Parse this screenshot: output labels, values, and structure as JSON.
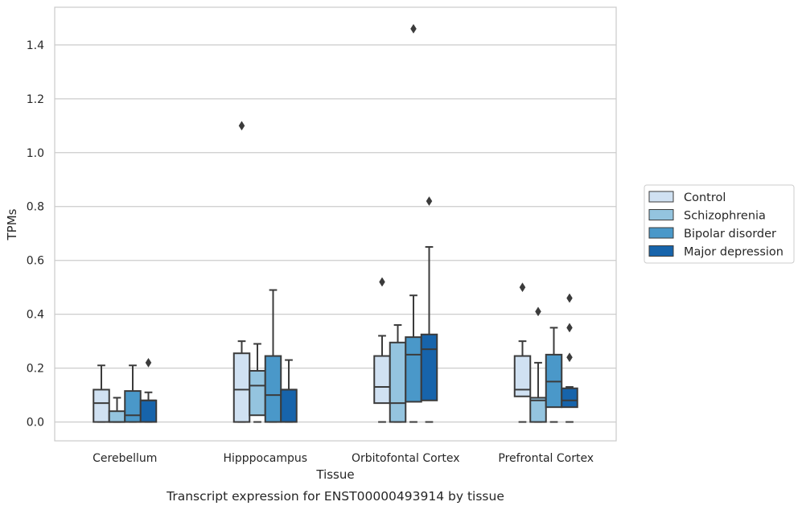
{
  "chart_data": {
    "type": "box",
    "xlabel": "Tissue",
    "ylabel": "TPMs",
    "caption": "Transcript expression for ENST00000493914 by tissue",
    "ylim": [
      -0.07,
      1.54
    ],
    "yticks": [
      0.0,
      0.2,
      0.4,
      0.6,
      0.8,
      1.0,
      1.2,
      1.4
    ],
    "ytick_labels": [
      "0.0",
      "0.2",
      "0.4",
      "0.6",
      "0.8",
      "1.0",
      "1.2",
      "1.4"
    ],
    "grid": "horizontal",
    "legend_position": "right",
    "categories": [
      "Cerebellum",
      "Hipppocampus",
      "Orbitofontal Cortex",
      "Prefrontal Cortex"
    ],
    "series": [
      {
        "name": "Control",
        "color": "#d0e1f2",
        "boxes": [
          {
            "whisker_low": 0.0,
            "q1": 0.0,
            "median": 0.07,
            "q3": 0.12,
            "whisker_high": 0.21,
            "outliers": []
          },
          {
            "whisker_low": 0.0,
            "q1": 0.0,
            "median": 0.12,
            "q3": 0.255,
            "whisker_high": 0.3,
            "outliers": [
              1.1
            ]
          },
          {
            "whisker_low": 0.0,
            "q1": 0.07,
            "median": 0.13,
            "q3": 0.245,
            "whisker_high": 0.32,
            "outliers": [
              0.52
            ]
          },
          {
            "whisker_low": 0.0,
            "q1": 0.095,
            "median": 0.12,
            "q3": 0.245,
            "whisker_high": 0.3,
            "outliers": [
              0.5
            ]
          }
        ]
      },
      {
        "name": "Schizophrenia",
        "color": "#94c4df",
        "boxes": [
          {
            "whisker_low": 0.0,
            "q1": 0.0,
            "median": 0.0,
            "q3": 0.04,
            "whisker_high": 0.09,
            "outliers": []
          },
          {
            "whisker_low": 0.0,
            "q1": 0.025,
            "median": 0.135,
            "q3": 0.19,
            "whisker_high": 0.29,
            "outliers": []
          },
          {
            "whisker_low": 0.0,
            "q1": 0.0,
            "median": 0.07,
            "q3": 0.295,
            "whisker_high": 0.36,
            "outliers": []
          },
          {
            "whisker_low": 0.0,
            "q1": 0.0,
            "median": 0.08,
            "q3": 0.09,
            "whisker_high": 0.22,
            "outliers": [
              0.41
            ]
          }
        ]
      },
      {
        "name": "Bipolar disorder",
        "color": "#4a98c9",
        "boxes": [
          {
            "whisker_low": 0.0,
            "q1": 0.0,
            "median": 0.025,
            "q3": 0.115,
            "whisker_high": 0.21,
            "outliers": []
          },
          {
            "whisker_low": 0.0,
            "q1": 0.0,
            "median": 0.1,
            "q3": 0.245,
            "whisker_high": 0.49,
            "outliers": []
          },
          {
            "whisker_low": 0.0,
            "q1": 0.075,
            "median": 0.25,
            "q3": 0.315,
            "whisker_high": 0.47,
            "outliers": [
              1.46
            ]
          },
          {
            "whisker_low": 0.0,
            "q1": 0.055,
            "median": 0.15,
            "q3": 0.25,
            "whisker_high": 0.35,
            "outliers": []
          }
        ]
      },
      {
        "name": "Major depression",
        "color": "#1764ab",
        "boxes": [
          {
            "whisker_low": 0.0,
            "q1": 0.0,
            "median": 0.08,
            "q3": 0.08,
            "whisker_high": 0.11,
            "outliers": [
              0.22
            ]
          },
          {
            "whisker_low": 0.0,
            "q1": 0.0,
            "median": 0.12,
            "q3": 0.12,
            "whisker_high": 0.23,
            "outliers": []
          },
          {
            "whisker_low": 0.0,
            "q1": 0.08,
            "median": 0.27,
            "q3": 0.325,
            "whisker_high": 0.65,
            "outliers": [
              0.82
            ]
          },
          {
            "whisker_low": 0.0,
            "q1": 0.055,
            "median": 0.08,
            "q3": 0.125,
            "whisker_high": 0.13,
            "outliers": [
              0.24,
              0.35,
              0.46
            ]
          }
        ]
      }
    ]
  }
}
